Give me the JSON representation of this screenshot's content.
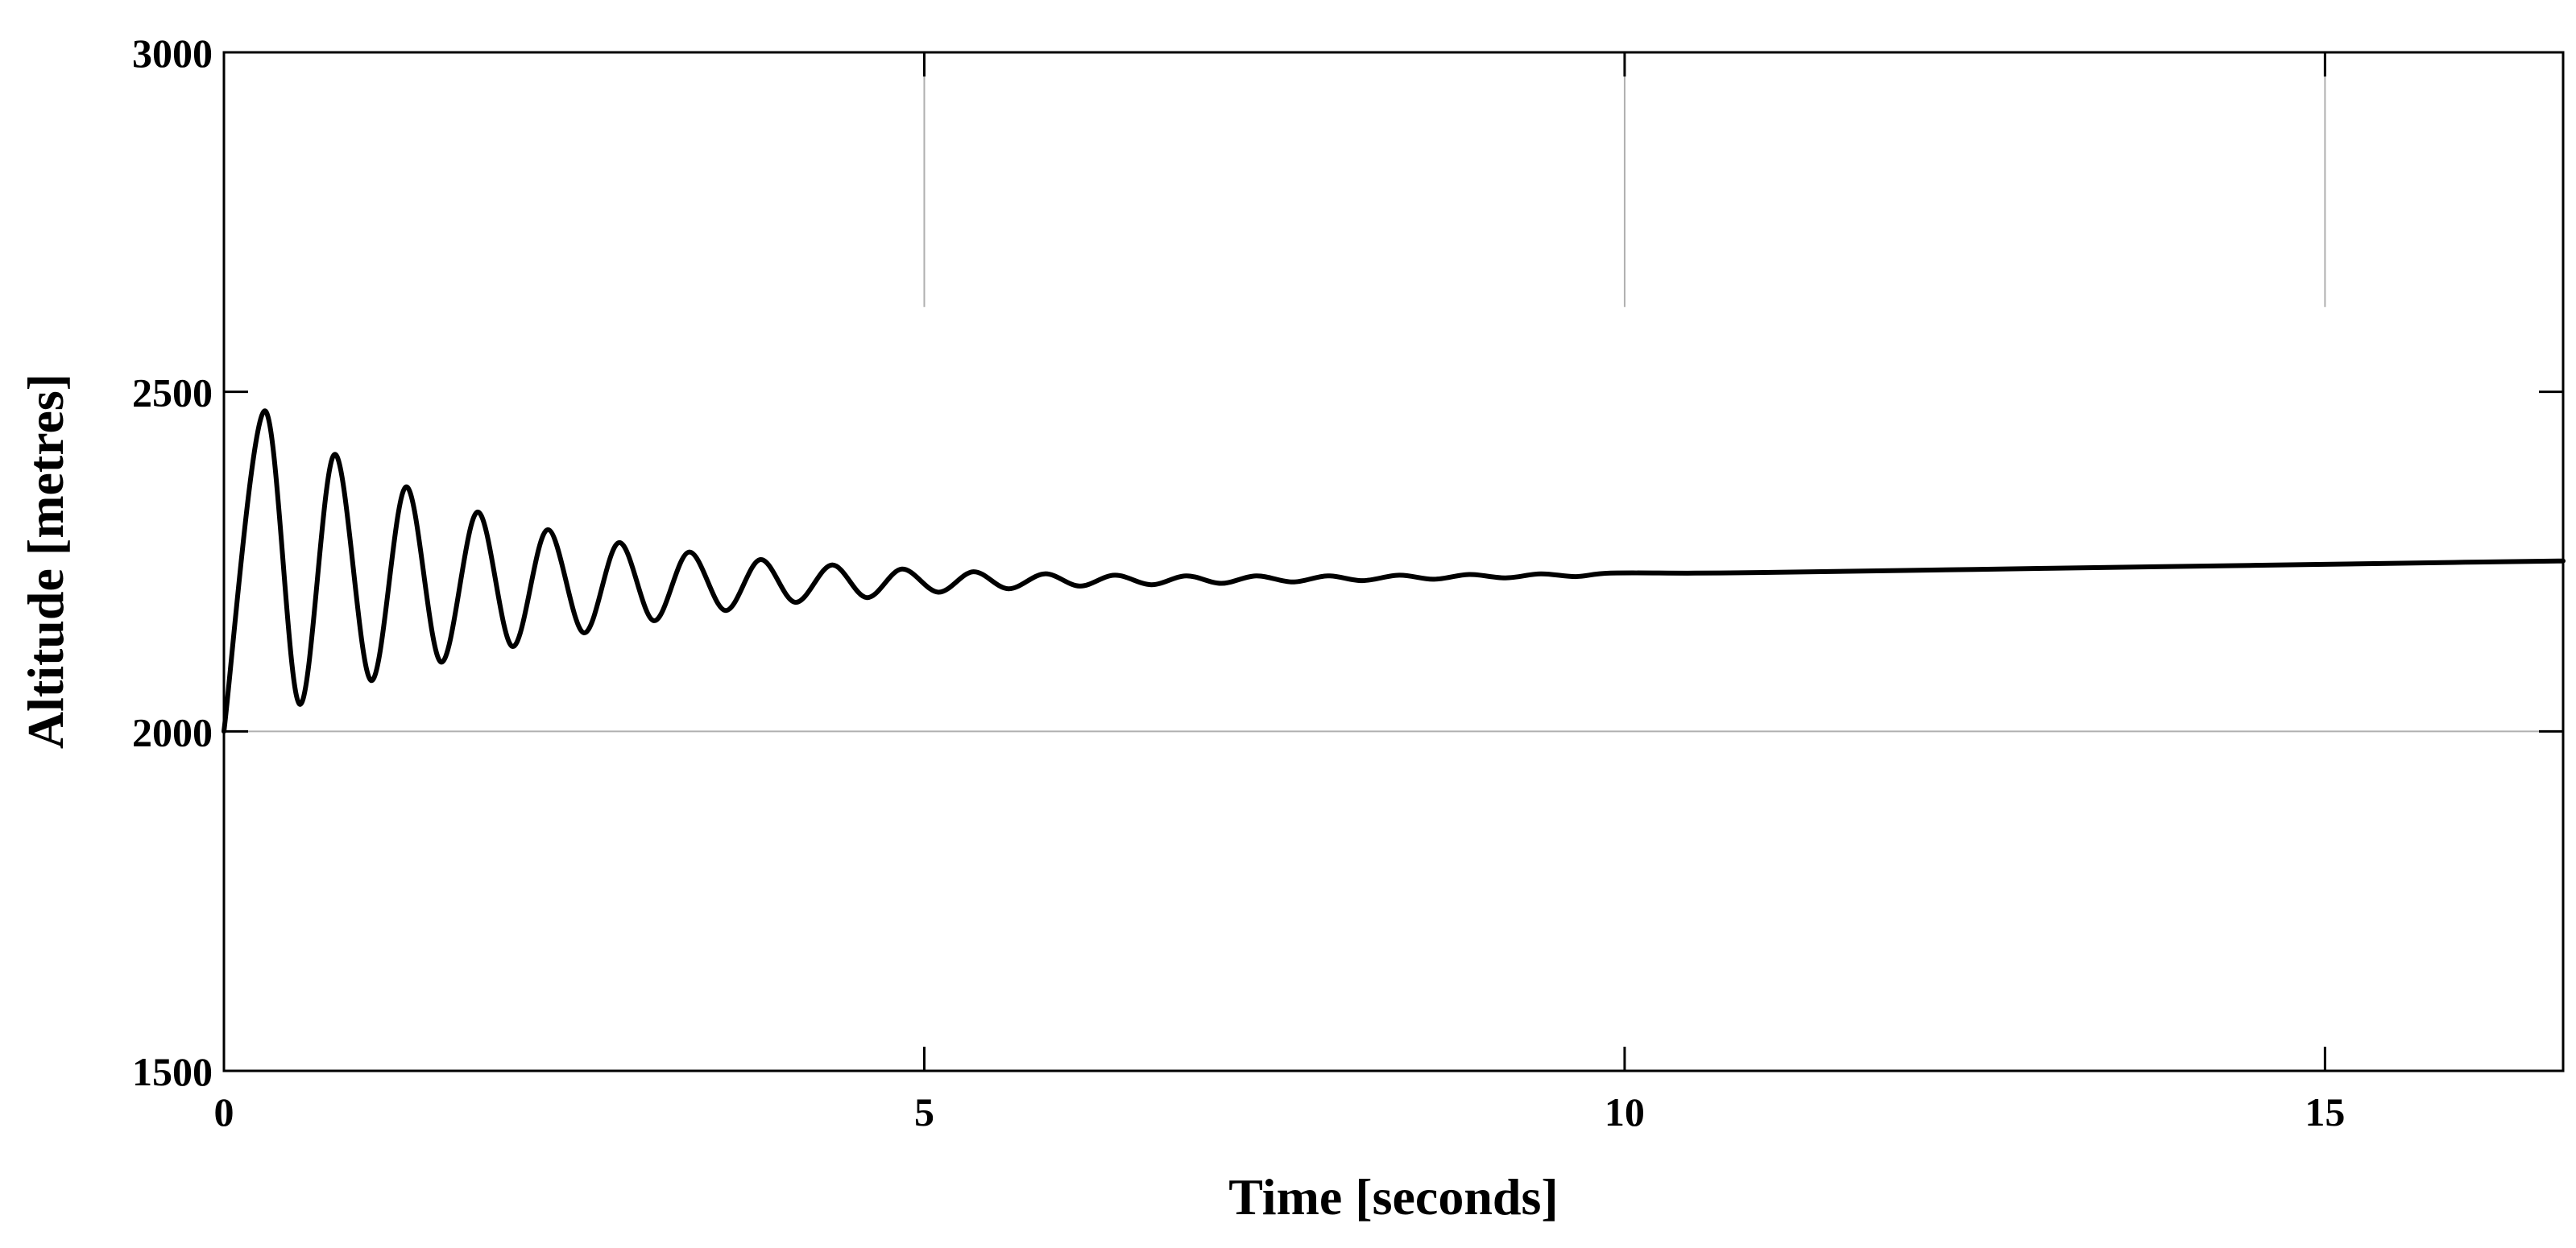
{
  "chart_data": {
    "type": "line",
    "title": "",
    "xlabel": "Time [seconds]",
    "ylabel": "Altitude [metres]",
    "xlim": [
      0,
      16.7
    ],
    "ylim": [
      1500,
      3000
    ],
    "xticks": [
      0,
      5,
      10,
      15
    ],
    "yticks": [
      1500,
      2000,
      2500,
      3000
    ],
    "xtick_labels": [
      "0",
      "5",
      "10",
      "15"
    ],
    "ytick_labels": [
      "1500",
      "2000",
      "2500",
      "3000"
    ],
    "grid": "partial",
    "line_color": "#000000",
    "grid_color": "#b0b0b0",
    "series": [
      {
        "x": [
          0,
          0.29,
          0.54,
          0.79,
          1.05,
          1.3,
          1.55,
          1.81,
          2.06,
          2.31,
          2.57,
          2.82,
          3.07,
          3.32,
          3.58,
          3.83,
          4.08,
          4.34,
          4.59,
          4.84,
          5.1,
          5.35,
          5.6,
          5.86,
          6.11,
          6.36,
          6.62,
          6.87,
          7.12,
          7.37,
          7.63,
          7.88,
          8.13,
          8.39,
          8.64,
          8.89,
          9.15,
          9.4,
          9.65,
          9.9,
          10.5,
          11,
          12,
          13,
          14,
          15,
          16,
          16.7
        ],
        "y": [
          2000,
          2472,
          2040,
          2408,
          2075,
          2360,
          2102,
          2323,
          2125,
          2297,
          2145,
          2278,
          2163,
          2264,
          2178,
          2253,
          2190,
          2245,
          2197,
          2239,
          2205,
          2235,
          2210,
          2232,
          2214,
          2230,
          2216,
          2229,
          2218,
          2229,
          2220,
          2229,
          2222,
          2230,
          2224,
          2231,
          2226,
          2232,
          2228,
          2233,
          2233,
          2234,
          2237,
          2240,
          2243,
          2246,
          2249,
          2251
        ]
      }
    ]
  }
}
